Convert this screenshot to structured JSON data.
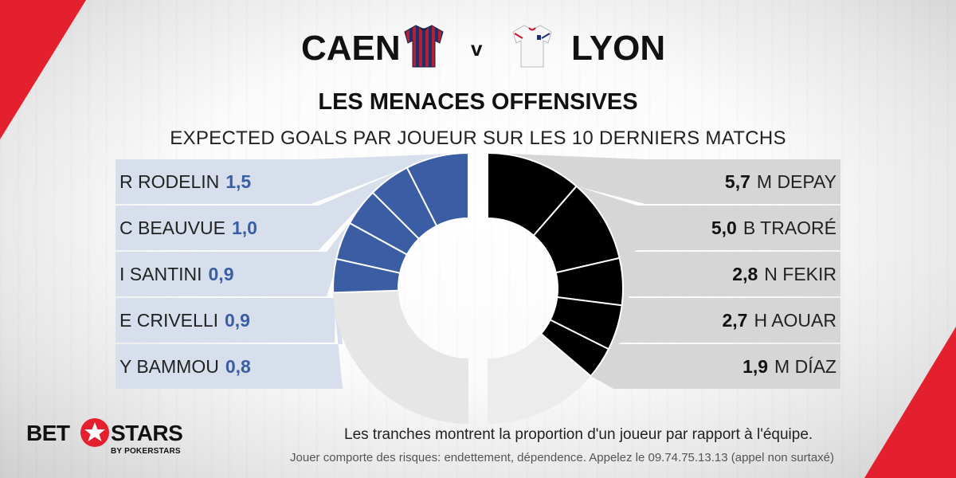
{
  "header": {
    "home_team": "CAEN",
    "away_team": "LYON",
    "versus": "v",
    "title": "LES MENACES OFFENSIVES",
    "subtitle": "EXPECTED GOALS PAR JOUEUR SUR LES 10 DERNIERS MATCHS"
  },
  "colors": {
    "home_accent": "#3a5da3",
    "home_panel": "#d7dfec",
    "away_accent": "#000000",
    "away_panel": "#d6d6d6",
    "ring_rest_home": "#e6e6e6",
    "ring_rest_away": "#ececec",
    "brand_red": "#e5202e"
  },
  "chart_data": [
    {
      "type": "pie",
      "team": "CAEN",
      "categories": [
        "R RODELIN",
        "C BEAUVUE",
        "I SANTINI",
        "E CRIVELLI",
        "Y BAMMOU"
      ],
      "labels": [
        "1,5",
        "1,0",
        "0,9",
        "0,9",
        "0,8"
      ],
      "values": [
        1.5,
        1.0,
        0.9,
        0.9,
        0.8
      ]
    },
    {
      "type": "pie",
      "team": "LYON",
      "categories": [
        "M DEPAY",
        "B TRAORÉ",
        "N FEKIR",
        "H AOUAR",
        "M DÍAZ"
      ],
      "labels": [
        "5,7",
        "5,0",
        "2,8",
        "2,7",
        "1,9"
      ],
      "values": [
        5.7,
        5.0,
        2.8,
        2.7,
        1.9
      ]
    }
  ],
  "footer": {
    "note": "Les tranches montrent la proportion d'un joueur par rapport à l'équipe.",
    "disclaimer": "Jouer comporte des risques: endettement, dépendence. Appelez le 09.74.75.13.13 (appel non surtaxé)",
    "logo_left": "BET",
    "logo_right": "STARS",
    "logo_sub": "BY POKERSTARS"
  }
}
